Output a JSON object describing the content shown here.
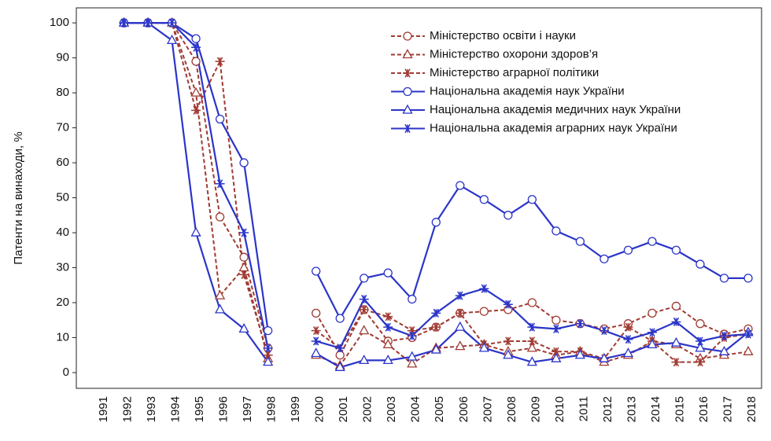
{
  "chart_data": {
    "type": "line",
    "y_label": "Патенти на винаходи, %",
    "categories": [
      "1991",
      "1992",
      "1993",
      "1994",
      "1995",
      "1996",
      "1997",
      "1998",
      "1999",
      "2000",
      "2001",
      "2002",
      "2003",
      "2004",
      "2005",
      "2006",
      "2007",
      "2008",
      "2009",
      "2010",
      "2011",
      "2012",
      "2013",
      "2014",
      "2015",
      "2016",
      "2017",
      "2018"
    ],
    "series": [
      {
        "name": "Міністерство освіти і науки",
        "color": "#a03a32",
        "dash": true,
        "marker": "circle",
        "values": [
          null,
          100,
          100,
          100,
          89,
          44.5,
          33,
          7,
          null,
          17,
          5,
          18,
          9,
          10,
          13,
          17,
          17.5,
          18,
          20,
          15,
          14,
          12.5,
          14,
          17,
          19,
          14,
          11,
          12.5
        ]
      },
      {
        "name": "Міністерство охорони здоров’я",
        "color": "#a03a32",
        "dash": true,
        "marker": "triangle",
        "values": [
          null,
          100,
          100,
          100,
          80,
          22,
          30,
          4,
          null,
          5,
          2,
          12,
          8,
          2.5,
          7,
          7.5,
          8,
          6,
          7,
          5,
          6,
          3,
          5,
          9,
          8,
          4,
          5,
          6
        ]
      },
      {
        "name": "Міністерство аграрної політики",
        "color": "#a03a32",
        "dash": true,
        "marker": "star",
        "values": [
          null,
          100,
          100,
          100,
          75,
          89,
          28,
          5,
          null,
          12,
          7,
          18,
          16,
          12,
          13,
          17,
          8,
          9,
          9,
          6,
          6,
          4,
          13,
          9,
          3,
          3,
          10,
          11
        ]
      },
      {
        "name": "Національна академія наук України",
        "color": "#2b35c8",
        "dash": false,
        "marker": "circle",
        "values": [
          null,
          100,
          100,
          100,
          95.5,
          72.5,
          60,
          12,
          null,
          29,
          15.5,
          27,
          28.5,
          21,
          43,
          53.5,
          49.5,
          45,
          49.5,
          40.5,
          37.5,
          32.5,
          35,
          37.5,
          35,
          31,
          27,
          27
        ]
      },
      {
        "name": "Національна академія медичних наук України",
        "color": "#2b35c8",
        "dash": false,
        "marker": "triangle",
        "values": [
          null,
          100,
          100,
          95,
          40,
          18,
          12.5,
          3,
          null,
          5.5,
          1.5,
          3.5,
          3.5,
          4.5,
          6.5,
          13,
          7,
          5,
          3,
          4,
          5,
          4,
          5.5,
          8,
          8.5,
          7,
          6,
          11.5
        ]
      },
      {
        "name": "Національна академія аграрних наук України",
        "color": "#2b35c8",
        "dash": false,
        "marker": "star",
        "values": [
          null,
          100,
          100,
          100,
          93,
          54,
          40,
          7,
          null,
          9,
          7,
          21,
          13,
          10.5,
          17,
          22,
          24,
          19.5,
          13,
          12.5,
          14,
          12,
          9.5,
          11.5,
          14.5,
          9,
          10.5,
          11
        ]
      }
    ],
    "ylim": [
      -4.5,
      104.3
    ],
    "yticks": [
      0,
      10,
      20,
      30,
      40,
      50,
      60,
      70,
      80,
      90,
      100
    ]
  }
}
